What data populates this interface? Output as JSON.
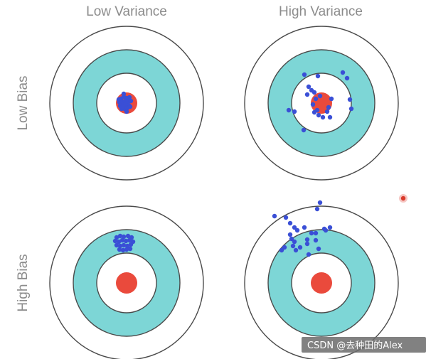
{
  "columns": [
    {
      "label": "Low Variance"
    },
    {
      "label": "High Variance"
    }
  ],
  "rows": [
    {
      "label": "Low Bias"
    },
    {
      "label": "High Bias"
    }
  ],
  "colors": {
    "ring_stroke": "#4a4a4a",
    "ring_teal": "#7dd6d6",
    "ring_white": "#ffffff",
    "bullseye": "#ea4a3c",
    "hit": "#3a4fd6",
    "title_text": "#8c8c8c",
    "watermark_bg": "#6b6b6b"
  },
  "targets": [
    {
      "row": "Low Bias",
      "column": "Low Variance",
      "hits": "tight cluster on bullseye"
    },
    {
      "row": "Low Bias",
      "column": "High Variance",
      "hits": "scattered around bullseye"
    },
    {
      "row": "High Bias",
      "column": "Low Variance",
      "hits": "tight cluster off-center (top)"
    },
    {
      "row": "High Bias",
      "column": "High Variance",
      "hits": "scattered off-center (top-left)"
    }
  ],
  "watermark": "CSDN @去种田的Alex"
}
